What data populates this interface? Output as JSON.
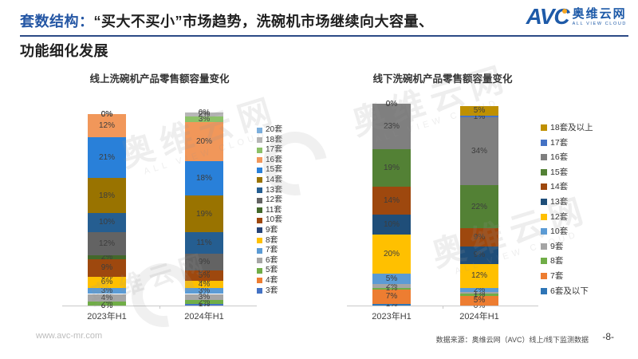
{
  "header": {
    "title_prefix": "套数结构：",
    "title_line1_rest": "“买大不买小”市场趋势，洗碗机市场继续向大容量、",
    "title_line2": "功能细化发展"
  },
  "logo": {
    "abbr": "AVC",
    "name_cn": "奥维云网",
    "name_en": "ALL VIEW CLOUD"
  },
  "watermark": {
    "cn": "奥维云网",
    "en": "ALL VIEW CLOUD"
  },
  "footer": {
    "website": "www.avc-mr.com",
    "source": "数据来源：奥维云网（AVC）线上/线下监测数据",
    "page": "-8-"
  },
  "colors": {
    "accent_blue": "#2456A4",
    "rule_blue": "#2C4A86",
    "axis_gray": "#C8C8C8"
  },
  "chart_data": [
    {
      "type": "bar",
      "stacked": true,
      "title": "线上洗碗机产品零售额容量变化",
      "categories": [
        "2023年H1",
        "2024年H1"
      ],
      "unit": "%",
      "legend_position": "right",
      "grid": false,
      "series": [
        {
          "name": "20套",
          "color": "#7CAFDD",
          "values": [
            0,
            0
          ]
        },
        {
          "name": "18套",
          "color": "#B7B7B7",
          "values": [
            0,
            2
          ]
        },
        {
          "name": "17套",
          "color": "#8CC168",
          "values": [
            0,
            3
          ]
        },
        {
          "name": "16套",
          "color": "#F1975A",
          "values": [
            12,
            20
          ]
        },
        {
          "name": "15套",
          "color": "#2980D9",
          "values": [
            21,
            18
          ]
        },
        {
          "name": "14套",
          "color": "#997300",
          "values": [
            18,
            19
          ]
        },
        {
          "name": "13套",
          "color": "#255E91",
          "values": [
            10,
            11
          ]
        },
        {
          "name": "12套",
          "color": "#636363",
          "values": [
            12,
            9
          ]
        },
        {
          "name": "11套",
          "color": "#43682B",
          "values": [
            2,
            0
          ]
        },
        {
          "name": "10套",
          "color": "#9E480E",
          "values": [
            9,
            5
          ]
        },
        {
          "name": "9套",
          "color": "#264478",
          "values": [
            0,
            0
          ]
        },
        {
          "name": "8套",
          "color": "#FFC000",
          "values": [
            6,
            4
          ]
        },
        {
          "name": "7套",
          "color": "#5B9BD5",
          "values": [
            3,
            3
          ]
        },
        {
          "name": "6套",
          "color": "#A5A5A5",
          "values": [
            4,
            3
          ]
        },
        {
          "name": "5套",
          "color": "#70AD47",
          "values": [
            2,
            2
          ]
        },
        {
          "name": "4套",
          "color": "#ED7D31",
          "values": [
            0,
            0
          ]
        },
        {
          "name": "3套",
          "color": "#4472C4",
          "values": [
            0,
            1
          ]
        }
      ]
    },
    {
      "type": "bar",
      "stacked": true,
      "title": "线下洗碗机产品零售额容量变化",
      "categories": [
        "2023年H1",
        "2024年H1"
      ],
      "unit": "%",
      "legend_position": "right",
      "grid": false,
      "series": [
        {
          "name": "18套及以上",
          "color": "#BF9000",
          "values": [
            0,
            5
          ]
        },
        {
          "name": "17套",
          "color": "#4472C4",
          "values": [
            0,
            1
          ]
        },
        {
          "name": "16套",
          "color": "#7F7F7F",
          "values": [
            23,
            34
          ]
        },
        {
          "name": "15套",
          "color": "#538135",
          "values": [
            19,
            22
          ]
        },
        {
          "name": "14套",
          "color": "#9E480E",
          "values": [
            14,
            9
          ]
        },
        {
          "name": "13套",
          "color": "#1F4E79",
          "values": [
            10,
            9
          ]
        },
        {
          "name": "12套",
          "color": "#FFC000",
          "values": [
            20,
            12
          ]
        },
        {
          "name": "10套",
          "color": "#5B9BD5",
          "values": [
            5,
            2
          ]
        },
        {
          "name": "9套",
          "color": "#A5A5A5",
          "values": [
            2,
            1
          ]
        },
        {
          "name": "8套",
          "color": "#70AD47",
          "values": [
            1,
            1
          ]
        },
        {
          "name": "7套",
          "color": "#ED7D31",
          "values": [
            7,
            5
          ]
        },
        {
          "name": "6套及以下",
          "color": "#2E75B6",
          "values": [
            1,
            0
          ]
        }
      ]
    }
  ]
}
